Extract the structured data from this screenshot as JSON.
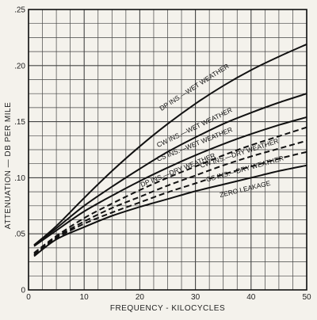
{
  "chart_data": {
    "type": "line",
    "xlabel": "FREQUENCY - KILOCYCLES",
    "ylabel": "ATTENUATION — DB PER MILE",
    "xlim": [
      0,
      50
    ],
    "ylim": [
      0,
      0.25
    ],
    "x_ticks": [
      "0",
      "10",
      "20",
      "30",
      "40",
      "50"
    ],
    "y_ticks": [
      "0",
      ".05",
      ".10",
      ".15",
      ".20",
      ".25"
    ],
    "grid": true,
    "x": [
      1,
      5,
      10,
      15,
      20,
      25,
      30,
      35,
      40,
      45,
      50
    ],
    "series": [
      {
        "name": "DP INS.—WET WEATHER",
        "style": "solid",
        "values": [
          0.04,
          0.057,
          0.082,
          0.106,
          0.128,
          0.148,
          0.166,
          0.182,
          0.196,
          0.208,
          0.219
        ]
      },
      {
        "name": "CW INS.—WET WEATHER",
        "style": "solid",
        "values": [
          0.04,
          0.055,
          0.075,
          0.092,
          0.108,
          0.123,
          0.136,
          0.148,
          0.158,
          0.167,
          0.175
        ]
      },
      {
        "name": "CS INS.—WET WEATHER",
        "style": "solid",
        "values": [
          0.039,
          0.053,
          0.07,
          0.084,
          0.097,
          0.109,
          0.12,
          0.13,
          0.139,
          0.147,
          0.154
        ]
      },
      {
        "name": "DP INS.—DRY WEATHER",
        "style": "dashed",
        "values": [
          0.033,
          0.048,
          0.064,
          0.077,
          0.089,
          0.1,
          0.11,
          0.12,
          0.129,
          0.137,
          0.145
        ]
      },
      {
        "name": "CW INS.—DRY WEATHER",
        "style": "dashed",
        "values": [
          0.032,
          0.047,
          0.061,
          0.073,
          0.083,
          0.093,
          0.102,
          0.111,
          0.119,
          0.126,
          0.133
        ]
      },
      {
        "name": "CS INS.—DRY WEATHER",
        "style": "dashed",
        "values": [
          0.031,
          0.046,
          0.059,
          0.069,
          0.078,
          0.087,
          0.095,
          0.103,
          0.11,
          0.117,
          0.123
        ]
      },
      {
        "name": "ZERO LEAKAGE",
        "style": "solid",
        "values": [
          0.03,
          0.045,
          0.056,
          0.066,
          0.074,
          0.081,
          0.088,
          0.094,
          0.1,
          0.106,
          0.111
        ]
      }
    ],
    "curve_labels": [
      {
        "text": "DP INS.—WET WEATHER",
        "at_x": 30,
        "at_y": 0.179
      },
      {
        "text": "CW INS.—WET WEATHER",
        "at_x": 30,
        "at_y": 0.143
      },
      {
        "text": "CS INS.—WET WEATHER",
        "at_x": 30,
        "at_y": 0.128
      },
      {
        "text": "DP INS.—DRY WEATHER",
        "at_x": 27,
        "at_y": 0.105
      },
      {
        "text": "CW INS.—DRY WEATHER",
        "at_x": 38,
        "at_y": 0.12
      },
      {
        "text": "CS INS.—DRY WEATHER",
        "at_x": 39,
        "at_y": 0.106
      },
      {
        "text": "ZERO LEAKAGE",
        "at_x": 39,
        "at_y": 0.088
      }
    ]
  }
}
